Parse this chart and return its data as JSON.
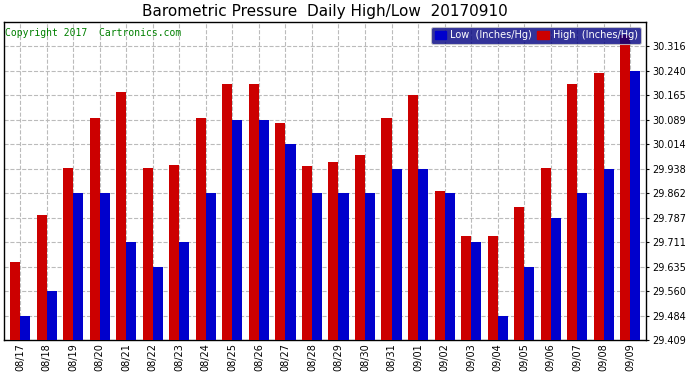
{
  "title": "Barometric Pressure  Daily High/Low  20170910",
  "copyright": "Copyright 2017  Cartronics.com",
  "legend_low": "Low  (Inches/Hg)",
  "legend_high": "High  (Inches/Hg)",
  "low_color": "#0000cc",
  "high_color": "#cc0000",
  "background_color": "#ffffff",
  "grid_color": "#bbbbbb",
  "ylim_min": 29.409,
  "ylim_max": 30.392,
  "yticks": [
    29.409,
    29.484,
    29.56,
    29.635,
    29.711,
    29.787,
    29.862,
    29.938,
    30.014,
    30.089,
    30.165,
    30.24,
    30.316
  ],
  "dates": [
    "08/17",
    "08/18",
    "08/19",
    "08/20",
    "08/21",
    "08/22",
    "08/23",
    "08/24",
    "08/25",
    "08/26",
    "08/27",
    "08/28",
    "08/29",
    "08/30",
    "08/31",
    "09/01",
    "09/02",
    "09/03",
    "09/04",
    "09/05",
    "09/06",
    "09/07",
    "09/08",
    "09/09"
  ],
  "high_values": [
    29.65,
    29.795,
    29.94,
    30.095,
    30.175,
    29.94,
    29.95,
    30.095,
    30.2,
    30.2,
    30.08,
    29.945,
    29.96,
    29.98,
    30.095,
    30.165,
    29.87,
    29.73,
    29.73,
    29.82,
    29.94,
    30.2,
    30.235,
    30.35
  ],
  "low_values": [
    29.484,
    29.56,
    29.862,
    29.862,
    29.711,
    29.635,
    29.711,
    29.862,
    30.089,
    30.089,
    30.014,
    29.862,
    29.862,
    29.862,
    29.938,
    29.938,
    29.862,
    29.711,
    29.484,
    29.635,
    29.787,
    29.862,
    29.938,
    30.24
  ],
  "title_fontsize": 11,
  "legend_fontsize": 7,
  "tick_fontsize": 7,
  "copyright_fontsize": 7,
  "bar_width": 0.38
}
